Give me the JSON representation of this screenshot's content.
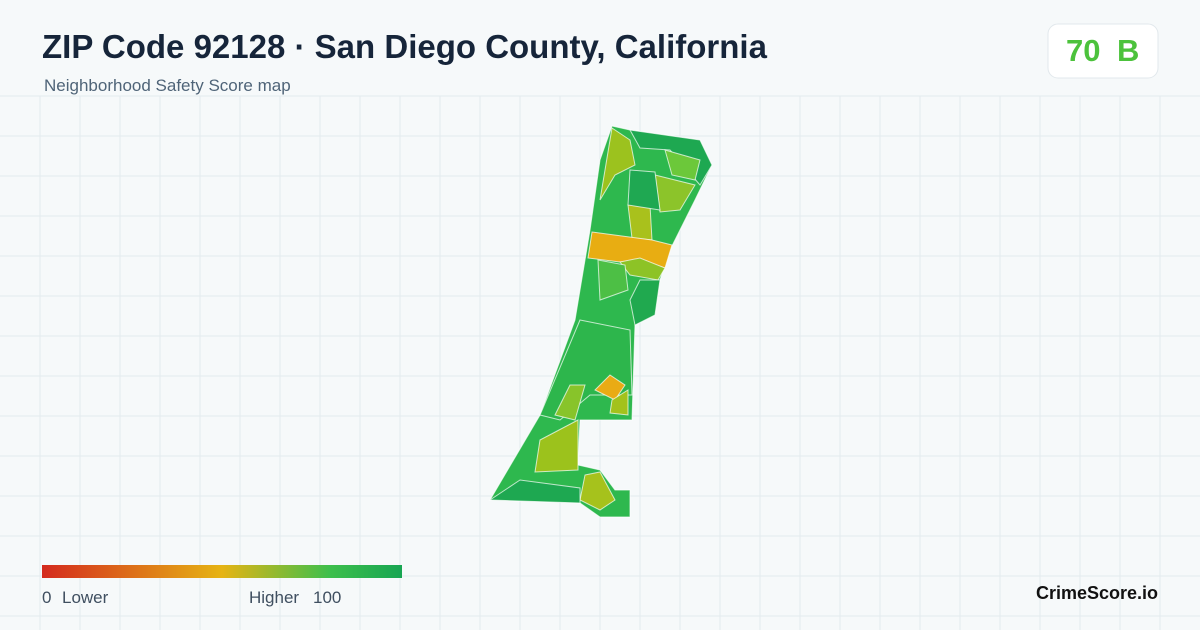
{
  "header": {
    "title": "ZIP Code 92128 · San Diego County, California",
    "subtitle": "Neighborhood Safety Score map"
  },
  "score": {
    "value": 70,
    "grade": "B"
  },
  "legend": {
    "min": 0,
    "min_label": "Lower",
    "max_label": "Higher",
    "max": 100
  },
  "brand": "CrimeScore.io"
}
